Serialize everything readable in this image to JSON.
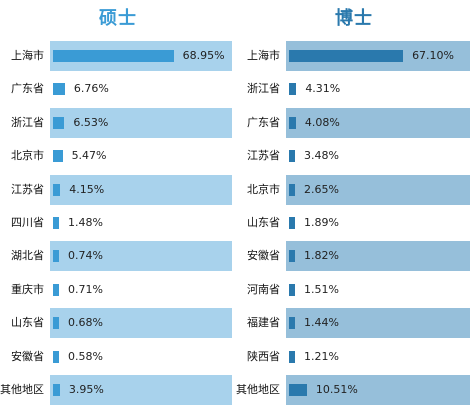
{
  "colors": {
    "master_accent": "#3a9bd5",
    "master_band": "#a8d2ec",
    "phd_accent": "#2a79ad",
    "phd_band": "#96bfda"
  },
  "chart_data": [
    {
      "type": "bar",
      "orientation": "horizontal",
      "title": "硕士",
      "categories": [
        "上海市",
        "广东省",
        "浙江省",
        "北京市",
        "江苏省",
        "四川省",
        "湖北省",
        "重庆市",
        "山东省",
        "安徽省",
        "其他地区"
      ],
      "values": [
        68.95,
        6.76,
        6.53,
        5.47,
        4.15,
        1.48,
        0.74,
        0.71,
        0.68,
        0.58,
        3.95
      ],
      "value_labels": [
        "68.95%",
        "6.76%",
        "6.53%",
        "5.47%",
        "4.15%",
        "1.48%",
        "0.74%",
        "0.71%",
        "0.68%",
        "0.58%",
        "3.95%"
      ],
      "unit": "%",
      "xlim": [
        0,
        100
      ],
      "grid": false,
      "legend": "none"
    },
    {
      "type": "bar",
      "orientation": "horizontal",
      "title": "博士",
      "categories": [
        "上海市",
        "浙江省",
        "广东省",
        "江苏省",
        "北京市",
        "山东省",
        "安徽省",
        "河南省",
        "福建省",
        "陕西省",
        "其他地区"
      ],
      "values": [
        67.1,
        4.31,
        4.08,
        3.48,
        2.65,
        1.89,
        1.82,
        1.51,
        1.44,
        1.21,
        10.51
      ],
      "value_labels": [
        "67.10%",
        "4.31%",
        "4.08%",
        "3.48%",
        "2.65%",
        "1.89%",
        "1.82%",
        "1.51%",
        "1.44%",
        "1.21%",
        "10.51%"
      ],
      "unit": "%",
      "xlim": [
        0,
        100
      ],
      "grid": false,
      "legend": "none"
    }
  ]
}
